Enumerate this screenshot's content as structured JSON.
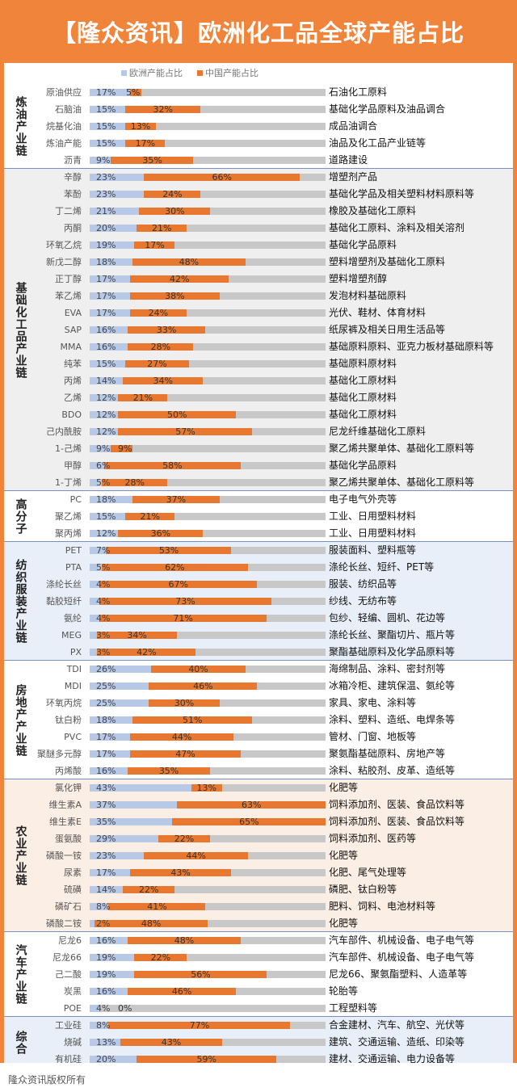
{
  "title": "【隆众资讯】欧洲化工品全球产能占比",
  "footer": "隆众资讯版权所有",
  "legend": {
    "eu": "欧洲产能占比",
    "cn": "中国产能占比"
  },
  "colors": {
    "eu": "#b8c9e8",
    "cn": "#e8782f",
    "track": "#c8c8c8",
    "frame": "#f0843a"
  },
  "chart_data": {
    "type": "bar",
    "title": "【隆众资讯】欧洲化工品全球产能占比",
    "xlim": [
      0,
      100
    ],
    "series": [
      {
        "name": "欧洲产能占比"
      },
      {
        "name": "中国产能占比"
      }
    ],
    "groups": [
      {
        "name": "炼油产业链",
        "bg": "#ffffff",
        "items": [
          {
            "name": "原油供应",
            "eu": 17,
            "cn": 5,
            "use": "石油化工原料"
          },
          {
            "name": "石脑油",
            "eu": 15,
            "cn": 32,
            "use": "基础化学品原料及油品调合"
          },
          {
            "name": "烷基化油",
            "eu": 15,
            "cn": 13,
            "use": "成品油调合"
          },
          {
            "name": "炼油产能",
            "eu": 15,
            "cn": 17,
            "use": "油品及化工品产业链等"
          },
          {
            "name": "沥青",
            "eu": 9,
            "cn": 35,
            "use": "道路建设"
          }
        ]
      },
      {
        "name": "基础化工品产业链",
        "bg": "#efefef",
        "items": [
          {
            "name": "辛醇",
            "eu": 23,
            "cn": 66,
            "use": "增塑剂产品"
          },
          {
            "name": "苯酚",
            "eu": 23,
            "cn": 24,
            "use": "基础化学品及相关塑料材料原料等"
          },
          {
            "name": "丁二烯",
            "eu": 21,
            "cn": 30,
            "use": "橡胶及基础化工原料"
          },
          {
            "name": "丙酮",
            "eu": 20,
            "cn": 21,
            "use": "基础化工原料、涂料及相关溶剂"
          },
          {
            "name": "环氧乙烷",
            "eu": 19,
            "cn": 17,
            "use": "基础化学品原料"
          },
          {
            "name": "新戊二醇",
            "eu": 18,
            "cn": 48,
            "use": "塑料增塑剂及基础化工原料"
          },
          {
            "name": "正丁醇",
            "eu": 17,
            "cn": 42,
            "use": "塑料增塑剂醇"
          },
          {
            "name": "苯乙烯",
            "eu": 17,
            "cn": 38,
            "use": "发泡材料基础原料"
          },
          {
            "name": "EVA",
            "eu": 17,
            "cn": 24,
            "use": "光伏、鞋材、体育材料"
          },
          {
            "name": "SAP",
            "eu": 16,
            "cn": 33,
            "use": "纸尿裤及相关日用生活品等"
          },
          {
            "name": "MMA",
            "eu": 16,
            "cn": 28,
            "use": "基础原料原料、亚克力板材基础原料等"
          },
          {
            "name": "纯苯",
            "eu": 15,
            "cn": 27,
            "use": "基础原料原材料"
          },
          {
            "name": "丙烯",
            "eu": 14,
            "cn": 34,
            "use": "基础化工原材料"
          },
          {
            "name": "乙烯",
            "eu": 12,
            "cn": 21,
            "use": "基础化工原材料"
          },
          {
            "name": "BDO",
            "eu": 12,
            "cn": 50,
            "use": "基础化工原材料"
          },
          {
            "name": "己内酰胺",
            "eu": 12,
            "cn": 57,
            "use": "尼龙纤维基础化工原料"
          },
          {
            "name": "1-己烯",
            "eu": 9,
            "cn": 9,
            "use": "聚乙烯共聚单体、基础化工原料等"
          },
          {
            "name": "甲醇",
            "eu": 6,
            "cn": 58,
            "use": "基础化学品原料"
          },
          {
            "name": "1-丁烯",
            "eu": 5,
            "cn": 28,
            "use": "聚乙烯共聚单体、基础化工原料等"
          }
        ]
      },
      {
        "name": "高分子",
        "bg": "#ffffff",
        "items": [
          {
            "name": "PC",
            "eu": 18,
            "cn": 37,
            "use": "电子电气外壳等"
          },
          {
            "name": "聚乙烯",
            "eu": 15,
            "cn": 21,
            "use": "工业、日用塑料材料"
          },
          {
            "name": "聚丙烯",
            "eu": 12,
            "cn": 36,
            "use": "工业、日用塑料材料"
          }
        ]
      },
      {
        "name": "纺织服装产业链",
        "bg": "#e9eff8",
        "items": [
          {
            "name": "PET",
            "eu": 7,
            "cn": 53,
            "use": "服装面料、塑料瓶等"
          },
          {
            "name": "PTA",
            "eu": 5,
            "cn": 62,
            "use": "涤纶长丝、短纤、PET等"
          },
          {
            "name": "涤纶长丝",
            "eu": 4,
            "cn": 67,
            "use": "服装、纺织品等"
          },
          {
            "name": "黏胶短纤",
            "eu": 4,
            "cn": 73,
            "use": "纱线、无纺布等"
          },
          {
            "name": "氨纶",
            "eu": 4,
            "cn": 71,
            "use": "包纱、轻编、圆机、花边等"
          },
          {
            "name": "MEG",
            "eu": 3,
            "cn": 34,
            "use": "涤纶长丝、聚酯切片、瓶片等"
          },
          {
            "name": "PX",
            "eu": 3,
            "cn": 42,
            "use": "聚酯基础原料及化学品原料等"
          }
        ]
      },
      {
        "name": "房地产产业链",
        "bg": "#ffffff",
        "items": [
          {
            "name": "TDI",
            "eu": 26,
            "cn": 40,
            "use": "海绵制品、涂料、密封剂等"
          },
          {
            "name": "MDI",
            "eu": 25,
            "cn": 46,
            "use": "冰箱冷柜、建筑保温、氨纶等"
          },
          {
            "name": "环氧丙烷",
            "eu": 25,
            "cn": 30,
            "use": "家具、家电、涂料等"
          },
          {
            "name": "钛白粉",
            "eu": 18,
            "cn": 51,
            "use": "涂料、塑料、造纸、电焊条等"
          },
          {
            "name": "PVC",
            "eu": 17,
            "cn": 44,
            "use": "管材、门窗、地板等"
          },
          {
            "name": "聚醚多元醇",
            "eu": 17,
            "cn": 47,
            "use": "聚氨酯基础原料、房地产等"
          },
          {
            "name": "丙烯酸",
            "eu": 16,
            "cn": 35,
            "use": "涂料、粘胶剂、皮革、造纸等"
          }
        ]
      },
      {
        "name": "农业产业链",
        "bg": "#fbeee4",
        "items": [
          {
            "name": "氯化钾",
            "eu": 43,
            "cn": 13,
            "use": "化肥等"
          },
          {
            "name": "维生素A",
            "eu": 37,
            "cn": 63,
            "use": "饲料添加剂、医装、食品饮料等"
          },
          {
            "name": "维生素E",
            "eu": 35,
            "cn": 65,
            "use": "饲料添加剂、医装、食品饮料等"
          },
          {
            "name": "蛋氨酸",
            "eu": 29,
            "cn": 22,
            "use": "饲料添加剂、医药等"
          },
          {
            "name": "磷酸一铵",
            "eu": 23,
            "cn": 44,
            "use": "化肥等"
          },
          {
            "name": "尿素",
            "eu": 17,
            "cn": 43,
            "use": "化肥、尾气处理等"
          },
          {
            "name": "硫磺",
            "eu": 14,
            "cn": 22,
            "use": "磷肥、钛白粉等"
          },
          {
            "name": "磷矿石",
            "eu": 8,
            "cn": 41,
            "use": "肥料、饲料、电池材料等"
          },
          {
            "name": "磷酸二铵",
            "eu": 2,
            "cn": 48,
            "use": "化肥等"
          }
        ]
      },
      {
        "name": "汽车产业链",
        "bg": "#ffffff",
        "items": [
          {
            "name": "尼龙6",
            "eu": 16,
            "cn": 48,
            "use": "汽车部件、机械设备、电子电气等"
          },
          {
            "name": "尼龙66",
            "eu": 19,
            "cn": 22,
            "use": "汽车部件、机械设备、电子电气等"
          },
          {
            "name": "己二酸",
            "eu": 19,
            "cn": 56,
            "use": "尼龙66、聚氨酯塑料、人造革等"
          },
          {
            "name": "炭黑",
            "eu": 16,
            "cn": 46,
            "use": "轮胎等"
          },
          {
            "name": "POE",
            "eu": 4,
            "cn": 0,
            "use": "工程塑料等"
          }
        ]
      },
      {
        "name": "综合",
        "bg": "#e9eff8",
        "items": [
          {
            "name": "工业硅",
            "eu": 8,
            "cn": 77,
            "use": "合金建材、汽车、航空、光伏等"
          },
          {
            "name": "烧碱",
            "eu": 13,
            "cn": 43,
            "use": "建筑、交通运输、造纸、印染等"
          },
          {
            "name": "有机硅",
            "eu": 20,
            "cn": 59,
            "use": "建材、交通运输、电力设备等"
          }
        ]
      }
    ]
  }
}
